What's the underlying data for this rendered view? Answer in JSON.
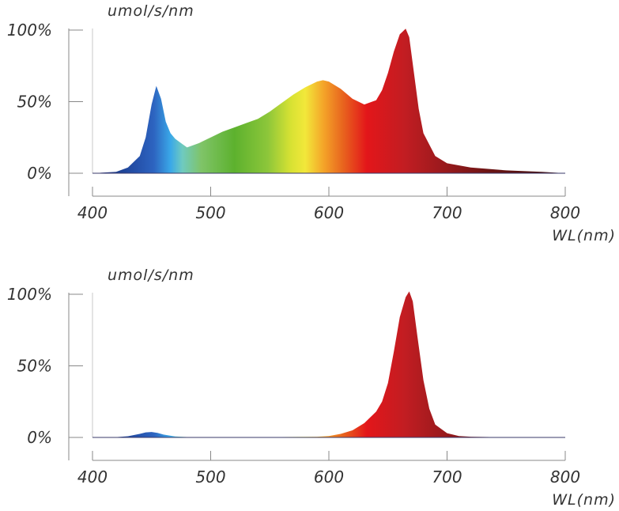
{
  "chart_data": [
    {
      "type": "area",
      "title": "",
      "ylabel": "umol/s/nm",
      "xlabel": "WL(nm)",
      "xlim": [
        400,
        800
      ],
      "ylim": [
        0,
        100
      ],
      "x_ticks": [
        "400",
        "500",
        "600",
        "700",
        "800"
      ],
      "y_ticks": [
        "0%",
        "50%",
        "100%"
      ],
      "grid": false,
      "fill": "wavelength-spectrum-gradient",
      "series": [
        {
          "x": [
            400,
            420,
            430,
            440,
            445,
            450,
            454,
            458,
            462,
            466,
            470,
            475,
            480,
            490,
            500,
            510,
            520,
            530,
            540,
            550,
            560,
            570,
            580,
            590,
            595,
            600,
            610,
            620,
            630,
            640,
            645,
            650,
            655,
            660,
            665,
            668,
            672,
            676,
            680,
            690,
            700,
            720,
            750,
            780,
            800
          ],
          "y": [
            0,
            1,
            4,
            12,
            25,
            48,
            61,
            52,
            36,
            28,
            24,
            21,
            18,
            21,
            25,
            29,
            32,
            35,
            38,
            43,
            49,
            55,
            60,
            64,
            65,
            64,
            59,
            52,
            48,
            51,
            58,
            70,
            85,
            97,
            101,
            95,
            70,
            45,
            28,
            12,
            7,
            4,
            2,
            1,
            0
          ]
        }
      ]
    },
    {
      "type": "area",
      "title": "",
      "ylabel": "umol/s/nm",
      "xlabel": "WL(nm)",
      "xlim": [
        400,
        800
      ],
      "ylim": [
        0,
        100
      ],
      "x_ticks": [
        "400",
        "500",
        "600",
        "700",
        "800"
      ],
      "y_ticks": [
        "0%",
        "50%",
        "100%"
      ],
      "grid": false,
      "fill": "wavelength-spectrum-gradient",
      "series": [
        {
          "x": [
            400,
            420,
            430,
            440,
            445,
            450,
            455,
            460,
            470,
            480,
            500,
            550,
            590,
            600,
            610,
            620,
            630,
            640,
            645,
            650,
            655,
            660,
            665,
            668,
            671,
            675,
            680,
            685,
            690,
            700,
            710,
            720,
            750,
            800
          ],
          "y": [
            0,
            0.2,
            0.8,
            2.5,
            3.5,
            3.8,
            3.2,
            2,
            0.7,
            0.3,
            0.1,
            0.2,
            0.5,
            1,
            2.5,
            5,
            10,
            18,
            25,
            38,
            60,
            84,
            98,
            102,
            95,
            70,
            40,
            20,
            9,
            3,
            1,
            0.5,
            0.1,
            0
          ]
        }
      ]
    }
  ]
}
